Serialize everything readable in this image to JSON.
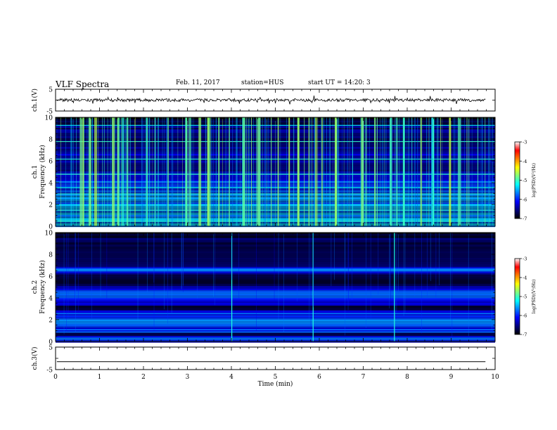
{
  "header": {
    "title": "VLF Spectra",
    "date": "Feb. 11, 2017",
    "station": "station=HUS",
    "start_ut": "start UT = 14:20: 3"
  },
  "colors": {
    "spectrogram_background": "#000000",
    "colorbar_stops": [
      "#000000",
      "#00007f",
      "#0000ff",
      "#0080ff",
      "#00ffff",
      "#80ff80",
      "#ffff00",
      "#ff8000",
      "#ff0000",
      "#ffffff"
    ]
  },
  "chart_data": [
    {
      "type": "line",
      "panel": "ch1-waveform",
      "ylabel": "ch.1(V)",
      "ylim": [
        -5,
        5
      ],
      "yticks": [
        "5",
        "-5"
      ],
      "xlim": [
        0,
        10
      ],
      "description_of_trace": "noisy waveform near 0 V",
      "baseline": 0
    },
    {
      "type": "heatmap",
      "panel": "ch1-spectrogram",
      "ylabel": "ch.1",
      "ylabel2": "Frequency (kHz)",
      "ylim": [
        0,
        10
      ],
      "yticks": [
        "0",
        "2",
        "4",
        "6",
        "8",
        "10"
      ],
      "xlim": [
        0,
        10
      ],
      "colorbar": {
        "label": "log(PSD)(V²/Hz)",
        "range": [
          -7,
          -3
        ],
        "ticks": [
          "-3",
          "-4",
          "-5",
          "-6",
          "-7"
        ]
      },
      "burst_times_min": [
        0.55,
        0.62,
        0.75,
        0.88,
        1.28,
        1.4,
        1.5,
        1.62,
        1.8,
        2.05,
        2.25,
        2.55,
        2.95,
        3.05,
        3.25,
        3.45,
        3.7,
        3.95,
        4.25,
        4.45,
        4.6,
        4.9,
        5.05,
        5.3,
        5.5,
        5.65,
        5.75,
        5.9,
        6.05,
        6.35,
        6.75,
        6.95,
        7.05,
        7.25,
        7.6,
        7.75,
        7.9,
        8.1,
        8.3,
        8.55,
        8.75,
        8.95,
        9.15,
        9.35,
        9.6
      ]
    },
    {
      "type": "heatmap",
      "panel": "ch2-spectrogram",
      "ylabel": "ch.2",
      "ylabel2": "Frequency (kHz)",
      "ylim": [
        0,
        10
      ],
      "yticks": [
        "0",
        "2",
        "4",
        "6",
        "8",
        "10"
      ],
      "xlim": [
        0,
        10
      ],
      "colorbar": {
        "label": "log(PSD)(V²/Hz)",
        "range": [
          -7,
          -3
        ],
        "ticks": [
          "-3",
          "-4",
          "-5",
          "-6",
          "-7"
        ]
      },
      "band_centers_khz": [
        0.2,
        1.8,
        4.2,
        6.5
      ],
      "line_freqs_khz": [
        0.9,
        1.1,
        2.6
      ],
      "spike_times_min": [
        4.0,
        5.85,
        7.7
      ]
    },
    {
      "type": "line",
      "panel": "ch3-waveform",
      "ylabel": "ch.3(V)",
      "ylim": [
        -5,
        5
      ],
      "yticks": [
        "5",
        "-5"
      ],
      "xlim": [
        0,
        10
      ],
      "baseline": -1.5
    }
  ],
  "xaxis": {
    "label": "Time (min)",
    "ticks": [
      "0",
      "1",
      "2",
      "3",
      "4",
      "5",
      "6",
      "7",
      "8",
      "9",
      "10"
    ]
  }
}
